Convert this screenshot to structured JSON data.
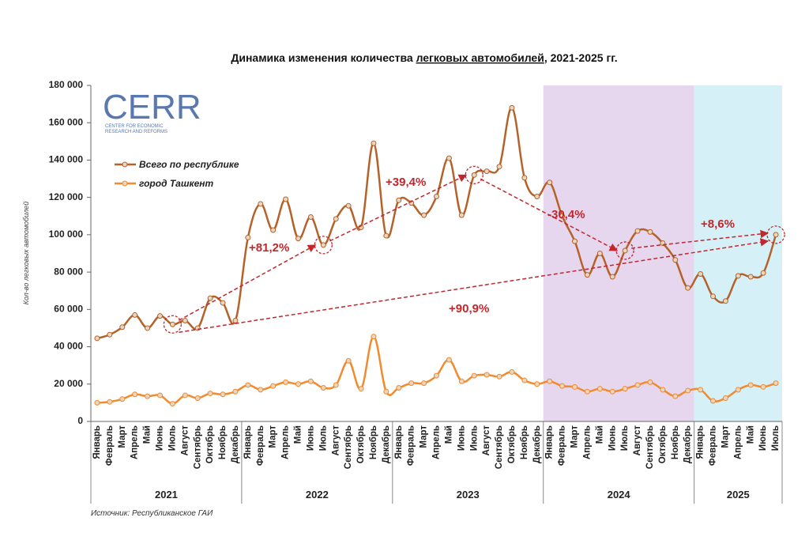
{
  "chart_data": {
    "type": "line",
    "title_parts": [
      "Динамика изменения количества ",
      "легковых автомобилей",
      ", 2021-2025 гг."
    ],
    "y_label": "Кол-во легковых автомобилей",
    "source": "Источник: Республиканское ГАИ",
    "logo": {
      "name": "CERR",
      "subtitle_lines": [
        "CENTER FOR ECONOMIC",
        "RESEARCH AND REFORMS"
      ]
    },
    "year_groups": [
      {
        "label": "2021",
        "months": [
          "Январь",
          "Февраль",
          "Март",
          "Апрель",
          "Май",
          "Июнь",
          "Июль",
          "Август",
          "Сентябрь",
          "Октябрь",
          "Ноябрь",
          "Декабрь"
        ]
      },
      {
        "label": "2022",
        "months": [
          "Январь",
          "Февраль",
          "Март",
          "Апрель",
          "Май",
          "Июнь",
          "Июль",
          "Август",
          "Сентябрь",
          "Октябрь",
          "Ноябрь",
          "Декабрь"
        ]
      },
      {
        "label": "2023",
        "months": [
          "Январь",
          "Февраль",
          "Март",
          "Апрель",
          "Май",
          "Июнь",
          "Июль",
          "Август",
          "Сентябрь",
          "Октябрь",
          "Ноябрь",
          "Декабрь"
        ]
      },
      {
        "label": "2024",
        "shade": "#e6d7ee",
        "months": [
          "Январь",
          "Февраль",
          "Март",
          "Апрель",
          "Май",
          "Июнь",
          "Июль",
          "Август",
          "Сентябрь",
          "Октябрь",
          "Ноябрь",
          "Декабрь"
        ]
      },
      {
        "label": "2025",
        "shade": "#d6f0f7",
        "months": [
          "Январь",
          "Февраль",
          "Март",
          "Апрель",
          "Май",
          "Июнь",
          "Июль"
        ]
      }
    ],
    "series": [
      {
        "name": "Всего по республике",
        "color": "#b5622a",
        "values": [
          44500,
          46500,
          50500,
          57000,
          50000,
          56500,
          52000,
          54000,
          50000,
          66000,
          63500,
          54000,
          98500,
          116500,
          102500,
          119000,
          98000,
          109500,
          94500,
          108500,
          115500,
          104000,
          149000,
          99500,
          118500,
          117000,
          110500,
          120500,
          141000,
          110500,
          132000,
          134000,
          136500,
          168000,
          130500,
          120500,
          128000,
          110000,
          96500,
          78500,
          90000,
          77500,
          91500,
          102000,
          101500,
          95500,
          86500,
          71500,
          79000,
          67000,
          64500,
          78000,
          77500,
          79500,
          100000
        ]
      },
      {
        "name": "город Ташкент",
        "color": "#f28a2e",
        "values": [
          10000,
          10500,
          12000,
          14500,
          13500,
          14000,
          9500,
          14000,
          12500,
          15000,
          14500,
          16000,
          19500,
          17000,
          19000,
          21000,
          20000,
          21500,
          18000,
          19500,
          32500,
          17500,
          45500,
          16000,
          18000,
          20500,
          20500,
          24500,
          33000,
          21500,
          24500,
          25000,
          24000,
          26500,
          22000,
          20000,
          21500,
          19000,
          18500,
          16000,
          17500,
          16000,
          17500,
          19500,
          21000,
          17000,
          13500,
          16500,
          17000,
          11000,
          12500,
          17000,
          19500,
          18500,
          20500
        ]
      }
    ],
    "annotations": [
      "+81,2%",
      "+39,4%",
      "-30,4%",
      "+8,6%",
      "+90,9%"
    ],
    "ylim": [
      0,
      180000
    ],
    "yticks": [
      0,
      {
        "value": 20000,
        "label": "20 000"
      },
      {
        "value": 40000,
        "label": "40 000"
      },
      {
        "value": 60000,
        "label": "60 000"
      },
      {
        "value": 80000,
        "label": "80 000"
      },
      {
        "value": 100000,
        "label": "100 000"
      },
      {
        "value": 120000,
        "label": "120 000"
      },
      {
        "value": 140000,
        "label": "140 000"
      },
      {
        "value": 160000,
        "label": "160 000"
      },
      {
        "value": 180000,
        "label": "180 000"
      }
    ],
    "grid": false,
    "legend": "upper left"
  }
}
